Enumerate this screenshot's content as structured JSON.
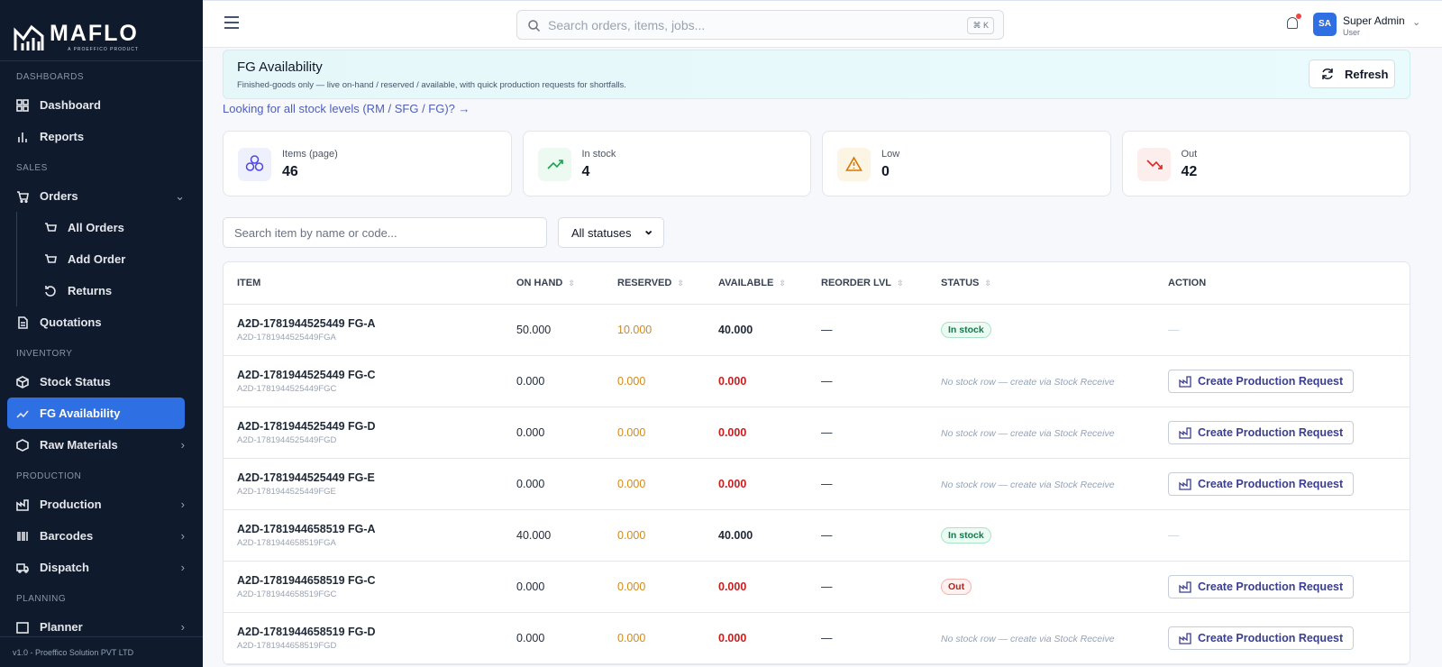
{
  "sidebar": {
    "logo": "MAFLO",
    "logo_sub": "A PROEFFICO PRODUCT",
    "sections": [
      {
        "title": "DASHBOARDS",
        "items": [
          "Dashboard",
          "Reports"
        ]
      },
      {
        "title": "SALES",
        "items": [
          "Orders",
          "All Orders",
          "Add Order",
          "Returns",
          "Quotations"
        ]
      },
      {
        "title": "INVENTORY",
        "items": [
          "Stock Status",
          "FG Availability",
          "Raw Materials"
        ]
      },
      {
        "title": "PRODUCTION",
        "items": [
          "Production",
          "Barcodes",
          "Dispatch"
        ]
      },
      {
        "title": "PLANNING",
        "items": [
          "Planner"
        ]
      }
    ],
    "footer": "v1.0 - Proeffico Solution PVT LTD"
  },
  "topbar": {
    "search_placeholder": "Search orders, items, jobs...",
    "shortcut": "⌘ K",
    "user_initials": "SA",
    "user_name": "Super Admin",
    "user_role": "User"
  },
  "banner": {
    "title": "FG Availability",
    "subtitle": "Finished-goods only — live on-hand / reserved / available, with quick production requests for shortfalls.",
    "refresh": "Refresh"
  },
  "link": "Looking for all stock levels (RM / SFG / FG)? →",
  "stats": [
    {
      "label": "Items (page)",
      "value": 46
    },
    {
      "label": "In stock",
      "value": 4
    },
    {
      "label": "Low",
      "value": 0
    },
    {
      "label": "Out",
      "value": 42
    }
  ],
  "filters": {
    "search_placeholder": "Search item by name or code...",
    "status": "All statuses"
  },
  "table": {
    "columns": [
      "ITEM",
      "ON HAND",
      "RESERVED",
      "AVAILABLE",
      "REORDER LVL",
      "STATUS",
      "ACTION"
    ],
    "rows": [
      [
        "A2D-1781944525449 FG-A",
        "A2D-1781944525449FGA",
        "50.000",
        "10.000",
        "40.000",
        "—",
        "In stock",
        "—"
      ],
      [
        "A2D-1781944525449 FG-C",
        "A2D-1781944525449FGC",
        "0.000",
        "0.000",
        "0.000",
        "—",
        "No stock row — create via Stock Receive",
        "Create Production Request"
      ],
      [
        "A2D-1781944525449 FG-D",
        "A2D-1781944525449FGD",
        "0.000",
        "0.000",
        "0.000",
        "—",
        "No stock row — create via Stock Receive",
        "Create Production Request"
      ],
      [
        "A2D-1781944525449 FG-E",
        "A2D-1781944525449FGE",
        "0.000",
        "0.000",
        "0.000",
        "—",
        "No stock row — create via Stock Receive",
        "Create Production Request"
      ],
      [
        "A2D-1781944658519 FG-A",
        "A2D-1781944658519FGA",
        "40.000",
        "0.000",
        "40.000",
        "—",
        "In stock",
        "—"
      ],
      [
        "A2D-1781944658519 FG-C",
        "A2D-1781944658519FGC",
        "0.000",
        "0.000",
        "0.000",
        "—",
        "Out",
        "Create Production Request"
      ],
      [
        "A2D-1781944658519 FG-D",
        "A2D-1781944658519FGD",
        "0.000",
        "0.000",
        "0.000",
        "—",
        "No stock row — create via Stock Receive",
        "Create Production Request"
      ]
    ]
  }
}
